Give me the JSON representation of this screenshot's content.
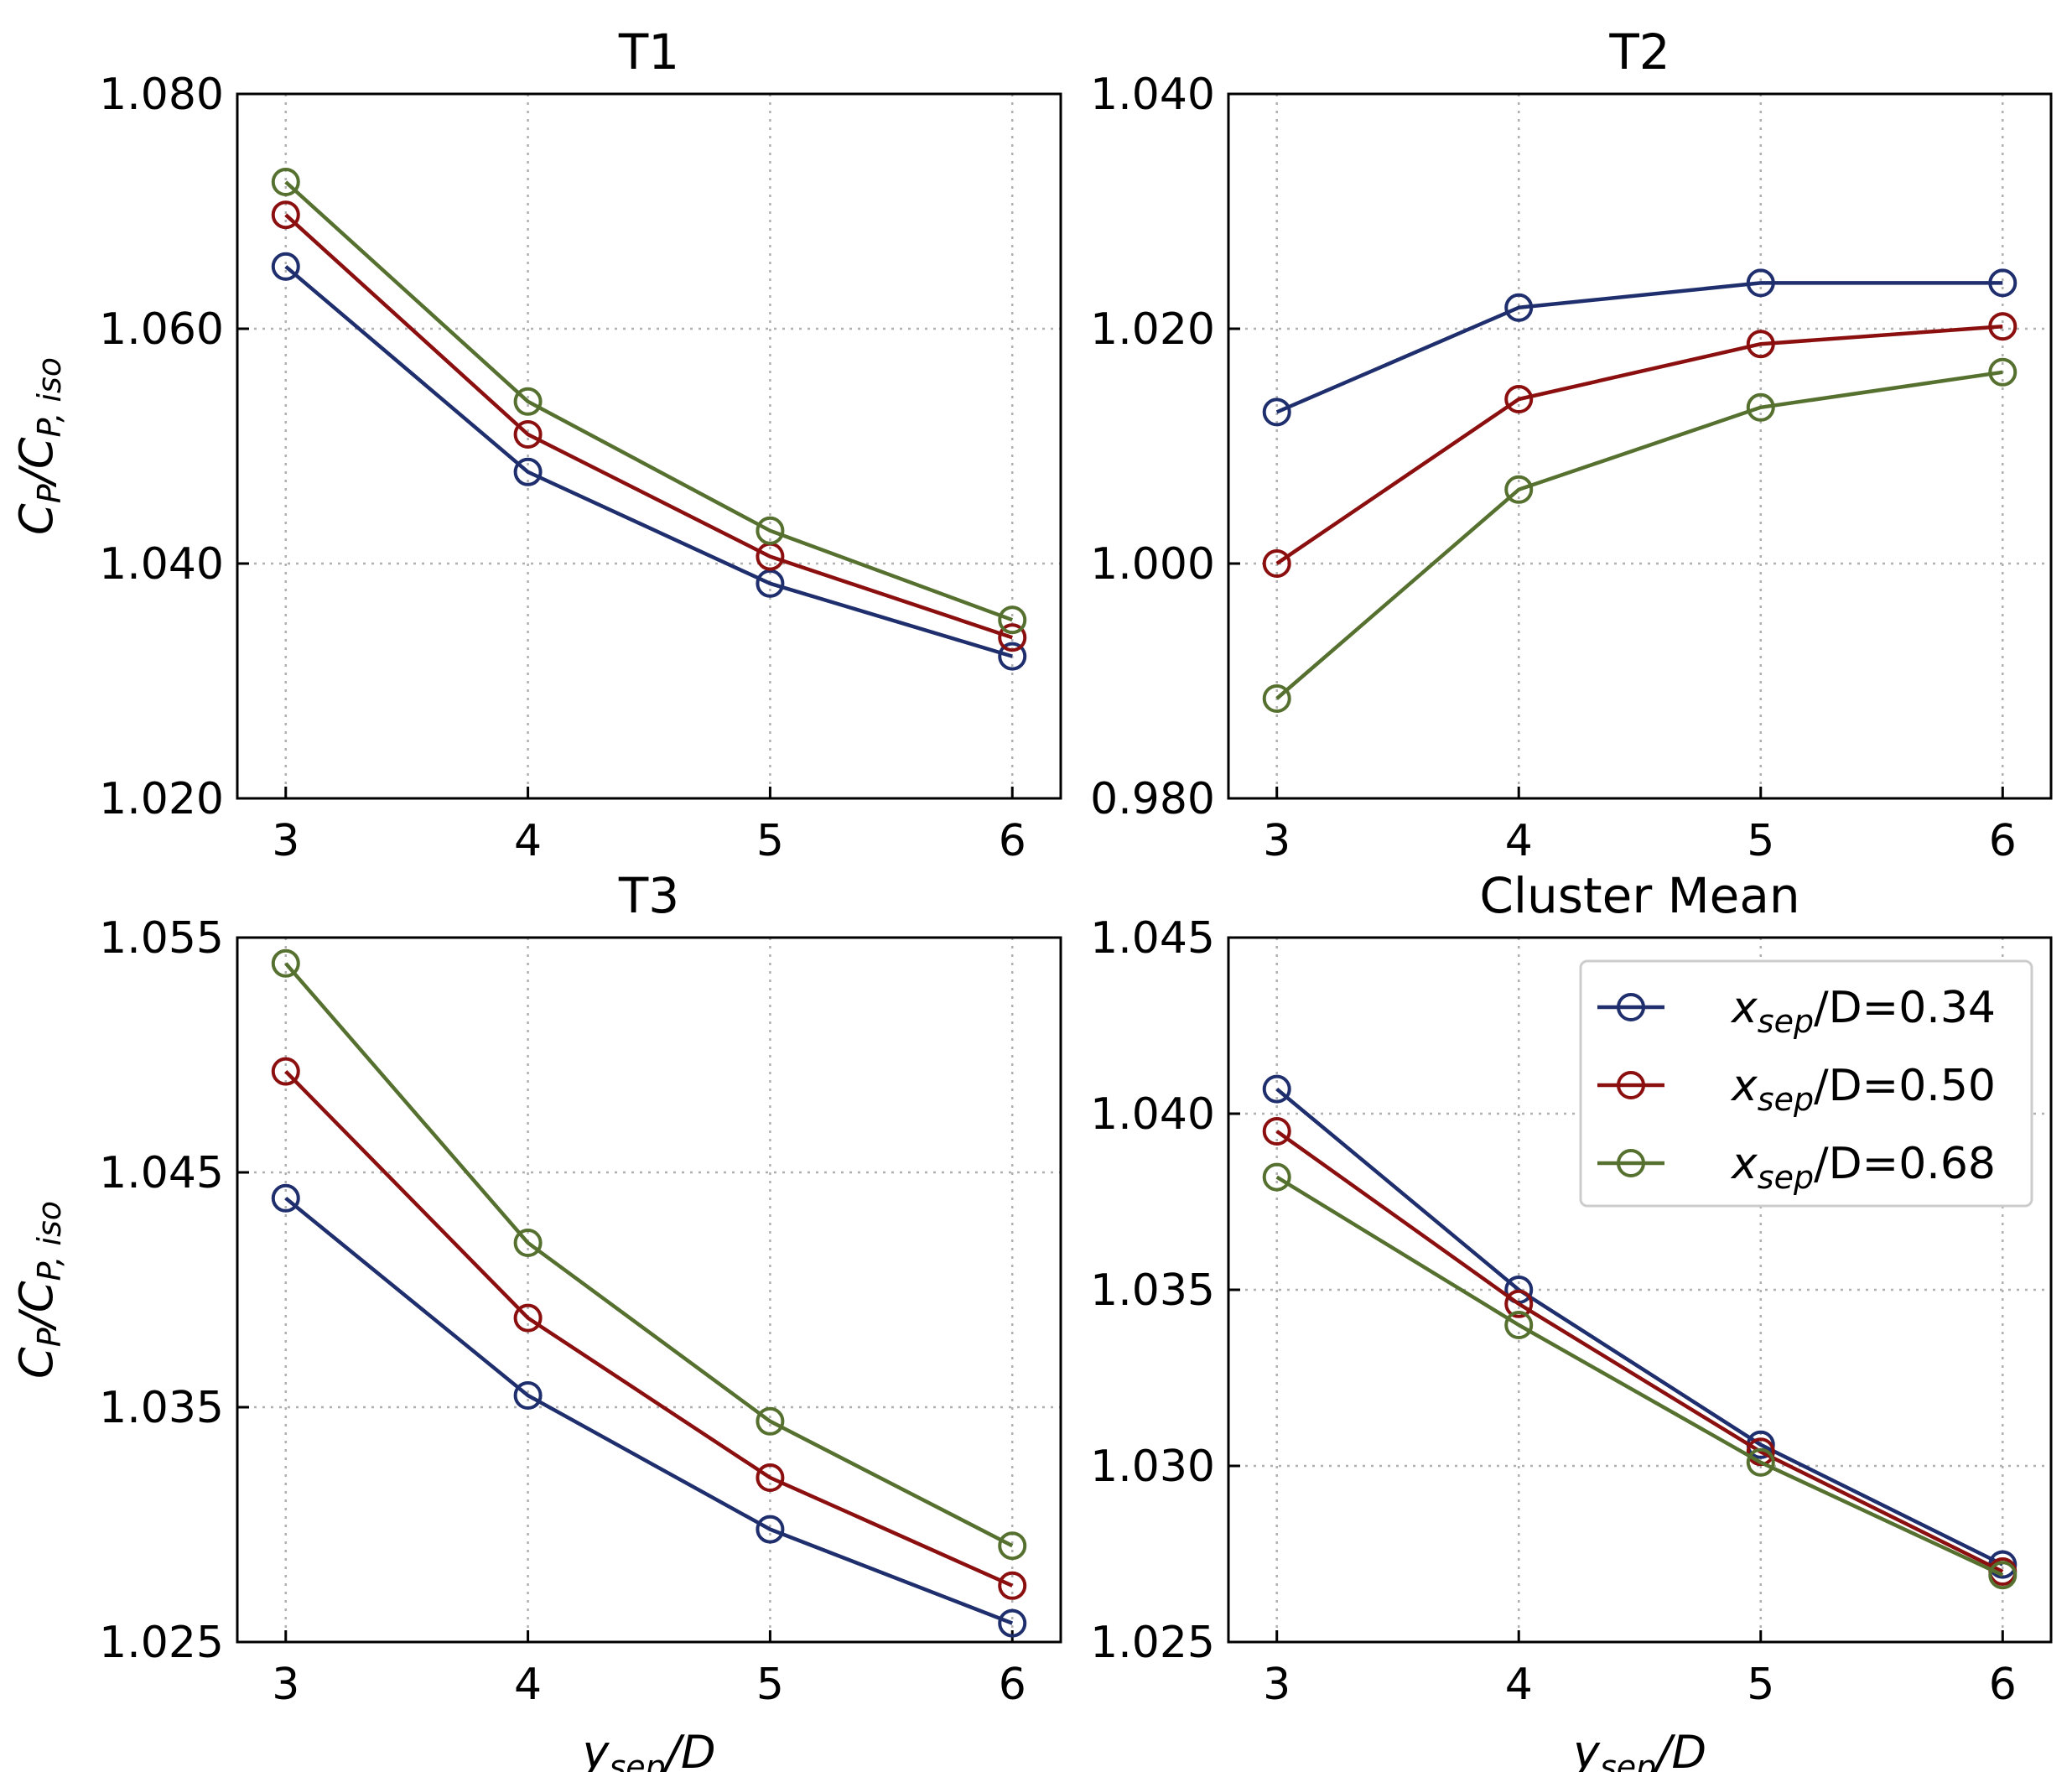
{
  "chart_data": [
    {
      "type": "line",
      "title": "T1",
      "xlabel": "",
      "ylabel": "C_P/C_P,iso",
      "x": [
        3,
        4,
        5,
        6
      ],
      "xticks": [
        "3",
        "4",
        "5",
        "6"
      ],
      "xlim": [
        2.8,
        6.2
      ],
      "ylim": [
        1.02,
        1.08
      ],
      "yticks": [
        "1.020",
        "1.040",
        "1.060",
        "1.080"
      ],
      "grid": true,
      "series": [
        {
          "name": "x_sep/D=0.34",
          "values": [
            1.0653,
            1.0478,
            1.0383,
            1.0321
          ]
        },
        {
          "name": "x_sep/D=0.50",
          "values": [
            1.0697,
            1.051,
            1.0406,
            1.0337
          ]
        },
        {
          "name": "x_sep/D=0.68",
          "values": [
            1.0725,
            1.0538,
            1.0428,
            1.0352
          ]
        }
      ]
    },
    {
      "type": "line",
      "title": "T2",
      "xlabel": "",
      "ylabel": "",
      "x": [
        3,
        4,
        5,
        6
      ],
      "xticks": [
        "3",
        "4",
        "5",
        "6"
      ],
      "xlim": [
        2.8,
        6.2
      ],
      "ylim": [
        0.98,
        1.04
      ],
      "yticks": [
        "0.980",
        "1.000",
        "1.020",
        "1.040"
      ],
      "grid": true,
      "series": [
        {
          "name": "x_sep/D=0.34",
          "values": [
            1.0129,
            1.0218,
            1.0239,
            1.0239
          ]
        },
        {
          "name": "x_sep/D=0.50",
          "values": [
            1.0,
            1.014,
            1.0187,
            1.0202
          ]
        },
        {
          "name": "x_sep/D=0.68",
          "values": [
            0.9885,
            1.0063,
            1.0133,
            1.0163
          ]
        }
      ]
    },
    {
      "type": "line",
      "title": "T3",
      "xlabel": "y_sep/D",
      "ylabel": "C_P/C_P,iso",
      "x": [
        3,
        4,
        5,
        6
      ],
      "xticks": [
        "3",
        "4",
        "5",
        "6"
      ],
      "xlim": [
        2.8,
        6.2
      ],
      "ylim": [
        1.025,
        1.055
      ],
      "yticks": [
        "1.025",
        "1.035",
        "1.045",
        "1.055"
      ],
      "grid": true,
      "series": [
        {
          "name": "x_sep/D=0.34",
          "values": [
            1.0439,
            1.0355,
            1.0298,
            1.0258
          ]
        },
        {
          "name": "x_sep/D=0.50",
          "values": [
            1.0493,
            1.0388,
            1.032,
            1.0274
          ]
        },
        {
          "name": "x_sep/D=0.68",
          "values": [
            1.0539,
            1.042,
            1.0344,
            1.0291
          ]
        }
      ]
    },
    {
      "type": "line",
      "title": "Cluster Mean",
      "xlabel": "y_sep/D",
      "ylabel": "",
      "x": [
        3,
        4,
        5,
        6
      ],
      "xticks": [
        "3",
        "4",
        "5",
        "6"
      ],
      "xlim": [
        2.8,
        6.2
      ],
      "ylim": [
        1.025,
        1.045
      ],
      "yticks": [
        "1.025",
        "1.030",
        "1.035",
        "1.040",
        "1.045"
      ],
      "grid": true,
      "legend": "top-right",
      "series": [
        {
          "name": "x_sep/D=0.34",
          "values": [
            1.0407,
            1.035,
            1.0306,
            1.0272
          ]
        },
        {
          "name": "x_sep/D=0.50",
          "values": [
            1.0395,
            1.0346,
            1.0304,
            1.027
          ]
        },
        {
          "name": "x_sep/D=0.68",
          "values": [
            1.0382,
            1.034,
            1.0301,
            1.0269
          ]
        }
      ]
    }
  ],
  "legend": [
    {
      "var": "x",
      "sub": "sep",
      "rest": "/D=0.34"
    },
    {
      "var": "x",
      "sub": "sep",
      "rest": "/D=0.50"
    },
    {
      "var": "x",
      "sub": "sep",
      "rest": "/D=0.68"
    }
  ],
  "axis_labels": {
    "ylabel_main": "C",
    "ylabel_sub1": "P",
    "ylabel_mid": "/C",
    "ylabel_sub2": "P, iso",
    "xlabel_main": "y",
    "xlabel_sub": "sep",
    "xlabel_rest": "/D"
  },
  "colors": {
    "series": [
      "#1f2f6e",
      "#8b0f0f",
      "#56712f"
    ],
    "grid": "#b0b0b0",
    "axis": "#000000"
  }
}
